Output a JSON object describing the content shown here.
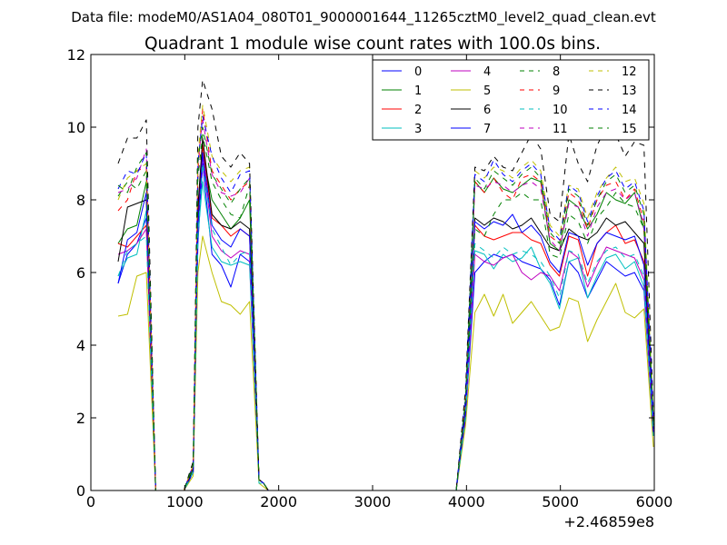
{
  "figure": {
    "suptitle": "Data file: modeM0/AS1A04_080T01_9000001644_11265cztM0_level2_quad_clean.evt",
    "offset_label": "+2.46859e8"
  },
  "chart_data": {
    "type": "line",
    "title": "Quadrant 1 module wise count rates with 100.0s bins.",
    "xlabel": "",
    "ylabel": "",
    "xlim": [
      0,
      6000
    ],
    "ylim": [
      0,
      12
    ],
    "x_offset": 246859000,
    "xticks": [
      0,
      1000,
      2000,
      3000,
      4000,
      5000,
      6000
    ],
    "yticks": [
      0,
      2,
      4,
      6,
      8,
      10,
      12
    ],
    "grid": false,
    "legend_position": "top-right",
    "x": [
      290,
      390,
      490,
      590,
      690,
      790,
      890,
      990,
      1090,
      1140,
      1190,
      1290,
      1390,
      1490,
      1590,
      1690,
      1790,
      1840,
      1890,
      1990,
      2090,
      2190,
      2290,
      2390,
      2490,
      2590,
      2690,
      2790,
      2890,
      2990,
      3090,
      3190,
      3290,
      3390,
      3490,
      3590,
      3690,
      3790,
      3890,
      3990,
      4090,
      4190,
      4290,
      4390,
      4490,
      4590,
      4690,
      4790,
      4890,
      4990,
      5090,
      5190,
      5290,
      5390,
      5490,
      5590,
      5690,
      5790,
      5890,
      5990
    ],
    "series": [
      {
        "name": "0",
        "color": "#0000ff",
        "dash": "solid",
        "values": [
          5.7,
          6.5,
          6.8,
          7.5,
          0,
          0,
          0,
          0,
          0.5,
          6.8,
          9.0,
          6.5,
          6.2,
          5.6,
          6.5,
          6.3,
          0.3,
          0.2,
          0,
          0,
          0,
          0,
          0,
          0,
          0,
          0,
          0,
          0,
          0,
          0,
          0,
          0,
          0,
          0,
          0,
          0,
          0,
          0,
          0,
          2.0,
          6.0,
          6.3,
          6.5,
          6.4,
          6.5,
          6.3,
          6.2,
          6.1,
          5.8,
          5.1,
          6.3,
          6.0,
          5.3,
          5.8,
          6.3,
          6.1,
          5.9,
          6.0,
          5.5,
          1.5
        ]
      },
      {
        "name": "1",
        "color": "#008000",
        "dash": "solid",
        "values": [
          6.8,
          7.2,
          7.3,
          8.5,
          0,
          0,
          0,
          0,
          0.6,
          7.4,
          9.3,
          8.0,
          7.6,
          7.2,
          7.5,
          8.0,
          0.3,
          0.2,
          0,
          0,
          0,
          0,
          0,
          0,
          0,
          0,
          0,
          0,
          0,
          0,
          0,
          0,
          0,
          0,
          0,
          0,
          0,
          0,
          0,
          2.2,
          8.5,
          8.2,
          8.6,
          8.3,
          8.2,
          8.4,
          8.6,
          8.5,
          6.8,
          6.6,
          8.0,
          7.8,
          7.2,
          7.6,
          8.2,
          8.0,
          7.9,
          8.2,
          7.2,
          1.8
        ]
      },
      {
        "name": "2",
        "color": "#ff0000",
        "dash": "solid",
        "values": [
          6.8,
          6.7,
          7.0,
          7.3,
          0,
          0,
          0,
          0,
          0.6,
          7.5,
          9.5,
          7.5,
          7.3,
          7.0,
          7.2,
          7.0,
          0.3,
          0.2,
          0,
          0,
          0,
          0,
          0,
          0,
          0,
          0,
          0,
          0,
          0,
          0,
          0,
          0,
          0,
          0,
          0,
          0,
          0,
          0,
          0,
          2.1,
          7.3,
          7.0,
          6.9,
          7.0,
          7.1,
          7.1,
          6.9,
          6.8,
          6.2,
          5.9,
          7.0,
          6.9,
          5.9,
          6.8,
          7.1,
          7.3,
          6.8,
          6.9,
          6.3,
          1.6
        ]
      },
      {
        "name": "3",
        "color": "#00bfbf",
        "dash": "solid",
        "values": [
          5.9,
          6.4,
          6.5,
          7.7,
          0,
          0,
          0,
          0,
          0.5,
          7.0,
          8.5,
          6.7,
          6.3,
          6.2,
          6.3,
          6.2,
          0.3,
          0.2,
          0,
          0,
          0,
          0,
          0,
          0,
          0,
          0,
          0,
          0,
          0,
          0,
          0,
          0,
          0,
          0,
          0,
          0,
          0,
          0,
          0,
          2.0,
          6.6,
          6.5,
          6.1,
          6.5,
          6.3,
          6.4,
          6.7,
          6.1,
          5.7,
          5.0,
          6.3,
          6.4,
          5.3,
          5.9,
          6.4,
          6.5,
          6.1,
          6.3,
          5.6,
          1.5
        ]
      },
      {
        "name": "4",
        "color": "#bf00bf",
        "dash": "solid",
        "values": [
          6.5,
          6.6,
          6.8,
          7.2,
          0,
          0,
          0,
          0,
          0.5,
          7.2,
          9.2,
          7.0,
          6.6,
          6.4,
          6.6,
          6.5,
          0.3,
          0.2,
          0,
          0,
          0,
          0,
          0,
          0,
          0,
          0,
          0,
          0,
          0,
          0,
          0,
          0,
          0,
          0,
          0,
          0,
          0,
          0,
          0,
          2.0,
          6.5,
          6.3,
          6.2,
          6.4,
          6.5,
          6.0,
          5.8,
          6.0,
          5.9,
          5.5,
          6.6,
          6.4,
          5.6,
          6.2,
          6.7,
          6.6,
          6.5,
          6.4,
          5.8,
          1.5
        ]
      },
      {
        "name": "5",
        "color": "#bfbf00",
        "dash": "solid",
        "values": [
          4.8,
          4.85,
          5.9,
          6.0,
          0,
          0,
          0,
          0,
          0.4,
          6.0,
          7.0,
          6.0,
          5.2,
          5.1,
          4.85,
          5.2,
          0.2,
          0.1,
          0,
          0,
          0,
          0,
          0,
          0,
          0,
          0,
          0,
          0,
          0,
          0,
          0,
          0,
          0,
          0,
          0,
          0,
          0,
          0,
          0,
          1.8,
          4.9,
          5.4,
          4.8,
          5.4,
          4.6,
          4.9,
          5.2,
          4.8,
          4.4,
          4.5,
          5.3,
          5.2,
          4.1,
          4.7,
          5.2,
          5.7,
          4.9,
          4.75,
          5.0,
          1.2
        ]
      },
      {
        "name": "6",
        "color": "#000000",
        "dash": "solid",
        "values": [
          6.3,
          7.8,
          7.9,
          8.0,
          0,
          0,
          0,
          0,
          0.6,
          7.8,
          9.7,
          7.6,
          7.3,
          7.2,
          7.4,
          7.2,
          0.3,
          0.2,
          0,
          0,
          0,
          0,
          0,
          0,
          0,
          0,
          0,
          0,
          0,
          0,
          0,
          0,
          0,
          0,
          0,
          0,
          0,
          0,
          0,
          2.2,
          7.5,
          7.3,
          7.5,
          7.4,
          7.2,
          7.3,
          7.5,
          7.1,
          6.7,
          6.6,
          7.2,
          7.0,
          6.9,
          7.1,
          7.5,
          7.3,
          7.4,
          7.1,
          6.8,
          1.7
        ]
      },
      {
        "name": "7",
        "color": "#0000ff",
        "dash": "solid",
        "values": [
          5.7,
          6.9,
          7.1,
          8.2,
          0,
          0,
          0,
          0,
          0.5,
          7.3,
          9.3,
          7.3,
          6.9,
          6.7,
          7.2,
          7.0,
          0.3,
          0.2,
          0,
          0,
          0,
          0,
          0,
          0,
          0,
          0,
          0,
          0,
          0,
          0,
          0,
          0,
          0,
          0,
          0,
          0,
          0,
          0,
          0,
          2.1,
          7.4,
          7.2,
          7.4,
          7.3,
          7.6,
          7.1,
          7.3,
          7.0,
          6.3,
          6.0,
          7.1,
          7.0,
          6.2,
          6.8,
          7.1,
          7.0,
          6.9,
          7.0,
          6.2,
          1.6
        ]
      },
      {
        "name": "8",
        "color": "#008000",
        "dash": "dashed",
        "values": [
          8.1,
          8.5,
          8.3,
          8.8,
          0,
          0,
          0,
          0,
          0.6,
          8.6,
          9.8,
          8.5,
          8.0,
          7.6,
          7.5,
          8.4,
          0.3,
          0.2,
          0,
          0,
          0,
          0,
          0,
          0,
          0,
          0,
          0,
          0,
          0,
          0,
          0,
          0,
          0,
          0,
          0,
          0,
          0,
          0,
          0,
          2.4,
          7.2,
          7.0,
          7.6,
          8.0,
          8.0,
          8.2,
          8.0,
          8.0,
          6.5,
          6.4,
          7.6,
          7.4,
          6.8,
          7.5,
          7.8,
          8.2,
          7.9,
          7.8,
          7.2,
          1.9
        ]
      },
      {
        "name": "9",
        "color": "#ff0000",
        "dash": "dashed",
        "values": [
          7.7,
          8.0,
          8.8,
          8.9,
          0,
          0,
          0,
          0,
          0.7,
          8.8,
          10.5,
          8.8,
          8.4,
          8.0,
          8.3,
          8.5,
          0.3,
          0.2,
          0,
          0,
          0,
          0,
          0,
          0,
          0,
          0,
          0,
          0,
          0,
          0,
          0,
          0,
          0,
          0,
          0,
          0,
          0,
          0,
          0,
          2.5,
          8.5,
          8.2,
          8.6,
          8.2,
          8.0,
          8.6,
          8.7,
          8.5,
          7.0,
          6.8,
          8.2,
          8.0,
          7.2,
          8.0,
          8.4,
          8.5,
          8.0,
          8.3,
          7.4,
          1.9
        ]
      },
      {
        "name": "10",
        "color": "#00bfbf",
        "dash": "dashed",
        "values": [
          5.9,
          6.6,
          6.8,
          7.0,
          0,
          0,
          0,
          0,
          0.5,
          7.0,
          9.0,
          7.2,
          6.7,
          6.2,
          6.5,
          6.6,
          0.2,
          0.2,
          0,
          0,
          0,
          0,
          0,
          0,
          0,
          0,
          0,
          0,
          0,
          0,
          0,
          0,
          0,
          0,
          0,
          0,
          0,
          0,
          0,
          2.0,
          6.8,
          6.6,
          6.4,
          6.7,
          6.5,
          6.6,
          6.5,
          6.3,
          5.9,
          5.3,
          6.6,
          6.5,
          5.7,
          6.3,
          6.6,
          6.7,
          6.4,
          6.5,
          5.9,
          1.5
        ]
      },
      {
        "name": "11",
        "color": "#bf00bf",
        "dash": "dashed",
        "values": [
          8.2,
          8.3,
          8.6,
          9.4,
          0,
          0,
          0,
          0,
          0.7,
          9.0,
          10.2,
          8.7,
          8.2,
          8.1,
          8.2,
          8.6,
          0.3,
          0.2,
          0,
          0,
          0,
          0,
          0,
          0,
          0,
          0,
          0,
          0,
          0,
          0,
          0,
          0,
          0,
          0,
          0,
          0,
          0,
          0,
          0,
          2.5,
          8.4,
          8.3,
          8.5,
          8.4,
          8.2,
          8.4,
          8.5,
          8.3,
          6.9,
          6.6,
          7.9,
          7.8,
          7.0,
          7.8,
          8.2,
          8.3,
          8.0,
          8.2,
          7.3,
          1.9
        ]
      },
      {
        "name": "12",
        "color": "#bfbf00",
        "dash": "dashed",
        "values": [
          8.0,
          8.6,
          8.8,
          9.0,
          0,
          0,
          0,
          0,
          0.7,
          9.2,
          10.6,
          9.2,
          8.8,
          8.5,
          8.8,
          8.9,
          0.3,
          0.2,
          0,
          0,
          0,
          0,
          0,
          0,
          0,
          0,
          0,
          0,
          0,
          0,
          0,
          0,
          0,
          0,
          0,
          0,
          0,
          0,
          0,
          2.6,
          8.8,
          8.6,
          8.9,
          8.8,
          8.6,
          8.9,
          9.1,
          8.8,
          7.3,
          7.0,
          8.4,
          8.3,
          7.5,
          8.2,
          8.6,
          8.9,
          8.5,
          8.6,
          7.9,
          2.0
        ]
      },
      {
        "name": "13",
        "color": "#000000",
        "dash": "dashed",
        "values": [
          9.0,
          9.7,
          9.7,
          10.2,
          0,
          0,
          0,
          0,
          0.8,
          10.0,
          11.3,
          10.5,
          9.2,
          8.9,
          9.3,
          9.0,
          0.3,
          0.2,
          0,
          0,
          0,
          0,
          0,
          0,
          0,
          0,
          0,
          0,
          0,
          0,
          0,
          0,
          0,
          0,
          0,
          0,
          0,
          0,
          0,
          2.8,
          8.9,
          8.8,
          9.2,
          8.9,
          8.8,
          9.3,
          9.8,
          9.4,
          7.6,
          7.4,
          9.8,
          9.0,
          8.5,
          9.5,
          10.0,
          9.8,
          9.2,
          9.6,
          9.5,
          2.1
        ]
      },
      {
        "name": "14",
        "color": "#0000ff",
        "dash": "dashed",
        "values": [
          8.3,
          8.8,
          8.7,
          9.3,
          0,
          0,
          0,
          0,
          0.7,
          9.0,
          10.3,
          9.2,
          8.6,
          8.2,
          8.7,
          8.8,
          0.3,
          0.2,
          0,
          0,
          0,
          0,
          0,
          0,
          0,
          0,
          0,
          0,
          0,
          0,
          0,
          0,
          0,
          0,
          0,
          0,
          0,
          0,
          0,
          2.6,
          8.7,
          8.5,
          9.1,
          8.7,
          8.5,
          8.8,
          9.0,
          8.7,
          7.2,
          6.9,
          8.4,
          8.2,
          7.4,
          8.1,
          8.6,
          8.8,
          8.3,
          8.5,
          7.7,
          2.0
        ]
      },
      {
        "name": "15",
        "color": "#008000",
        "dash": "dashed",
        "values": [
          8.4,
          8.2,
          8.9,
          9.3,
          0,
          0,
          0,
          0,
          0.7,
          9.1,
          10.0,
          8.7,
          8.3,
          7.9,
          8.3,
          8.6,
          0.3,
          0.2,
          0,
          0,
          0,
          0,
          0,
          0,
          0,
          0,
          0,
          0,
          0,
          0,
          0,
          0,
          0,
          0,
          0,
          0,
          0,
          0,
          0,
          2.5,
          8.6,
          8.3,
          8.8,
          8.6,
          8.4,
          8.7,
          8.9,
          8.6,
          7.1,
          6.8,
          8.3,
          8.1,
          7.3,
          8.0,
          8.5,
          8.7,
          8.2,
          8.4,
          7.6,
          1.9
        ]
      }
    ]
  }
}
